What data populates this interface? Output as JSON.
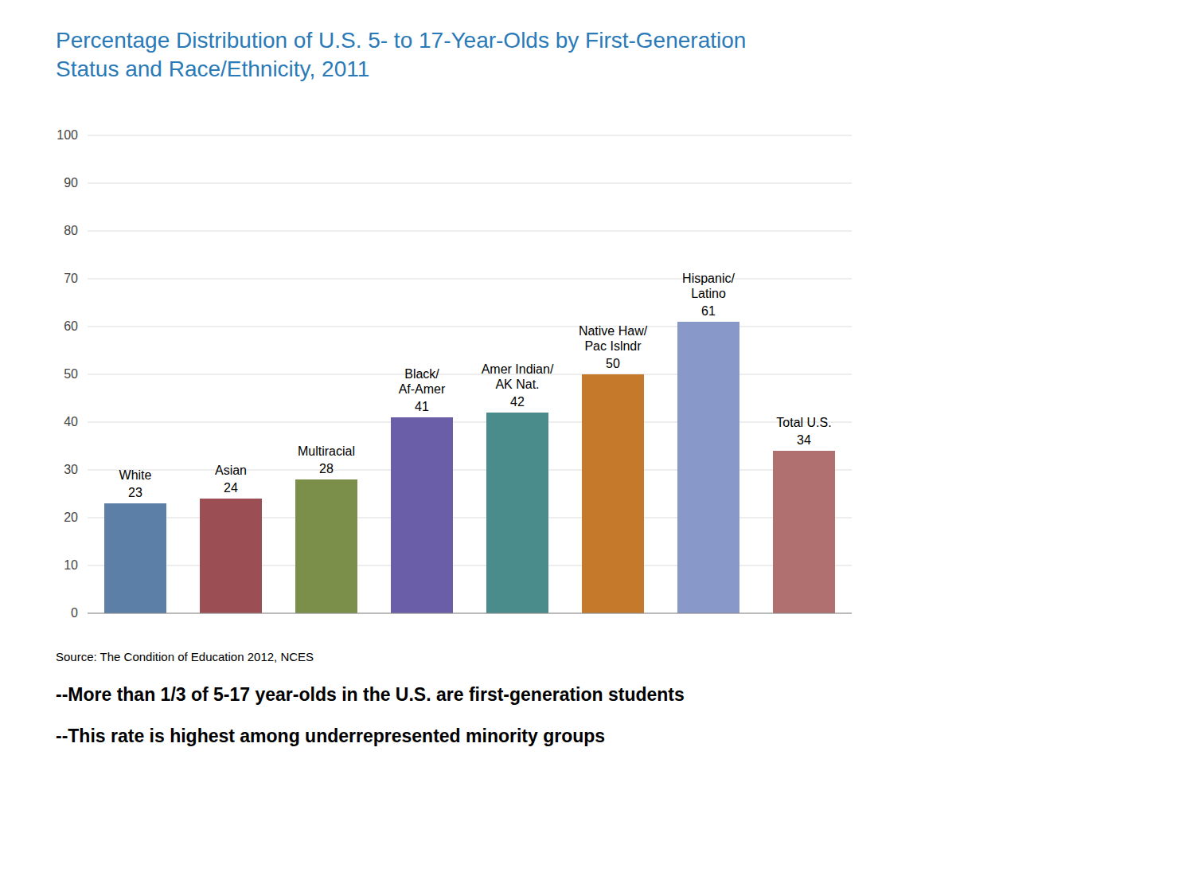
{
  "chart_data": {
    "type": "bar",
    "title": "Percentage Distribution of U.S. 5- to 17-Year-Olds by First-Generation\nStatus and Race/Ethnicity, 2011",
    "categories": [
      "White",
      "Asian",
      "Multiracial",
      "Black/\nAf-Amer",
      "Amer Indian/\nAK Nat.",
      "Native Haw/\nPac Islndr",
      "Hispanic/\nLatino",
      "Total U.S."
    ],
    "values": [
      23,
      24,
      28,
      41,
      42,
      50,
      61,
      34
    ],
    "colors": [
      "#5B7FA6",
      "#9B4F55",
      "#7B8F4A",
      "#6B5EA8",
      "#4A8C8C",
      "#C47A2A",
      "#8898C8",
      "#B07070"
    ],
    "ylim": [
      0,
      100
    ],
    "yticks": [
      0,
      10,
      20,
      30,
      40,
      50,
      60,
      70,
      80,
      90,
      100
    ],
    "grid": true,
    "data_labels": true,
    "tick_labels": "y",
    "annotations": [
      "Source: The Condition of Education 2012, NCES",
      "--More than 1/3 of 5-17 year-olds in the U.S. are first-generation students",
      "--This rate is highest among underrepresented minority groups"
    ]
  }
}
